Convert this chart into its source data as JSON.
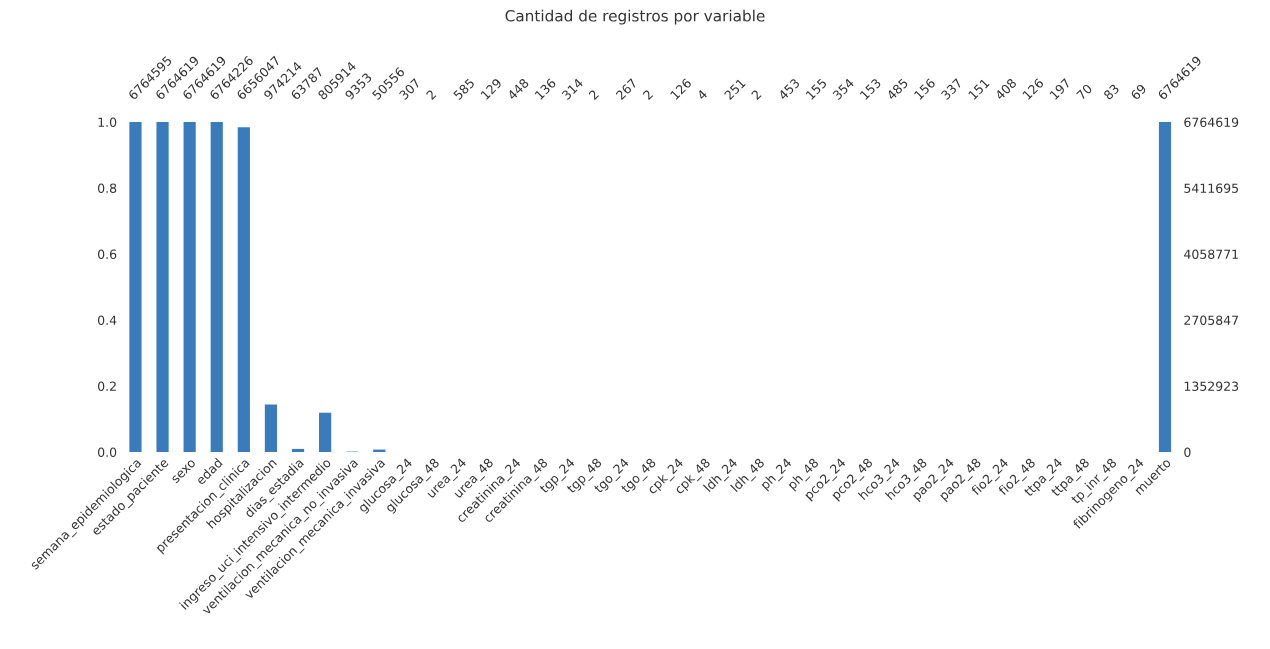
{
  "chart_data": {
    "type": "bar",
    "title": "Cantidad de registros por variable",
    "categories": [
      "semana_epidemiologica",
      "estado_paciente",
      "sexo",
      "edad",
      "presentacion_clinica",
      "hospitalizacion",
      "dias_estadia",
      "ingreso_uci_intensivo_intermedio",
      "ventilacion_mecanica_no_invasiva",
      "ventilacion_mecanica_invasiva",
      "glucosa_24",
      "glucosa_48",
      "urea_24",
      "urea_48",
      "creatinina_24",
      "creatinina_48",
      "tgp_24",
      "tgp_48",
      "tgo_24",
      "tgo_48",
      "cpk_24",
      "cpk_48",
      "ldh_24",
      "ldh_48",
      "ph_24",
      "ph_48",
      "pco2_24",
      "pco2_48",
      "hco3_24",
      "hco3_48",
      "pao2_24",
      "pao2_48",
      "fio2_24",
      "fio2_48",
      "ttpa_24",
      "ttpa_48",
      "tp_inr_48",
      "fibrinogeno_24",
      "muerto"
    ],
    "series": [
      {
        "color": "#3a7cbb",
        "axis": "y2",
        "values": [
          6764595,
          6764619,
          6764619,
          6764226,
          6656047,
          974214,
          63787,
          805914,
          9353,
          50556,
          307,
          2,
          585,
          129,
          448,
          136,
          314,
          2,
          267,
          2,
          126,
          4,
          251,
          2,
          453,
          155,
          354,
          153,
          485,
          156,
          337,
          151,
          408,
          126,
          197,
          70,
          83,
          69,
          6764619
        ]
      }
    ],
    "ylim": [
      0,
      1
    ],
    "yticks": [
      {
        "value": 0,
        "label": "0.0"
      },
      {
        "value": 0.2,
        "label": "0.2"
      },
      {
        "value": 0.4,
        "label": "0.4"
      },
      {
        "value": 0.6,
        "label": "0.6"
      },
      {
        "value": 0.8,
        "label": "0.8"
      },
      {
        "value": 1,
        "label": "1.0"
      }
    ],
    "y2lim": [
      0,
      6764619
    ],
    "y2ticks": [
      0,
      1352923,
      2705847,
      4058771,
      5411695,
      6764619
    ],
    "data_labels": true,
    "grid": false,
    "legend": false
  }
}
